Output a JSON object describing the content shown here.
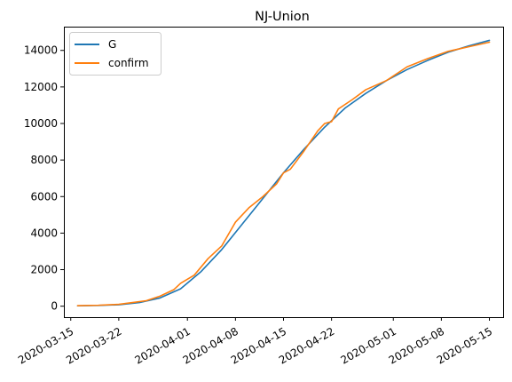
{
  "chart_data": {
    "type": "line",
    "title": "NJ-Union",
    "xlabel": "",
    "ylabel": "",
    "x_ticks": [
      "2020-03-15",
      "2020-03-22",
      "2020-04-01",
      "2020-04-08",
      "2020-04-15",
      "2020-04-22",
      "2020-05-01",
      "2020-05-08",
      "2020-05-15"
    ],
    "y_ticks": [
      0,
      2000,
      4000,
      6000,
      8000,
      10000,
      12000,
      14000
    ],
    "xlim": [
      "2020-03-14",
      "2020-05-17"
    ],
    "ylim": [
      -600,
      15300
    ],
    "grid": false,
    "legend_position": "top-left",
    "series": [
      {
        "name": "G",
        "color": "#1f77b4",
        "points": [
          [
            "2020-03-16",
            20
          ],
          [
            "2020-03-19",
            40
          ],
          [
            "2020-03-22",
            80
          ],
          [
            "2020-03-25",
            200
          ],
          [
            "2020-03-28",
            450
          ],
          [
            "2020-03-31",
            950
          ],
          [
            "2020-04-03",
            1900
          ],
          [
            "2020-04-06",
            3100
          ],
          [
            "2020-04-09",
            4500
          ],
          [
            "2020-04-12",
            5900
          ],
          [
            "2020-04-15",
            7300
          ],
          [
            "2020-04-18",
            8600
          ],
          [
            "2020-04-21",
            9800
          ],
          [
            "2020-04-24",
            10850
          ],
          [
            "2020-04-27",
            11650
          ],
          [
            "2020-04-30",
            12350
          ],
          [
            "2020-05-03",
            12950
          ],
          [
            "2020-05-06",
            13450
          ],
          [
            "2020-05-09",
            13900
          ],
          [
            "2020-05-12",
            14250
          ],
          [
            "2020-05-15",
            14550
          ]
        ]
      },
      {
        "name": "confirm",
        "color": "#ff7f0e",
        "points": [
          [
            "2020-03-16",
            30
          ],
          [
            "2020-03-19",
            50
          ],
          [
            "2020-03-22",
            100
          ],
          [
            "2020-03-24",
            200
          ],
          [
            "2020-03-26",
            300
          ],
          [
            "2020-03-28",
            550
          ],
          [
            "2020-03-30",
            900
          ],
          [
            "2020-03-31",
            1250
          ],
          [
            "2020-04-02",
            1700
          ],
          [
            "2020-04-04",
            2600
          ],
          [
            "2020-04-06",
            3300
          ],
          [
            "2020-04-08",
            4600
          ],
          [
            "2020-04-10",
            5400
          ],
          [
            "2020-04-12",
            6000
          ],
          [
            "2020-04-14",
            6700
          ],
          [
            "2020-04-15",
            7300
          ],
          [
            "2020-04-16",
            7500
          ],
          [
            "2020-04-18",
            8500
          ],
          [
            "2020-04-20",
            9600
          ],
          [
            "2020-04-21",
            10000
          ],
          [
            "2020-04-22",
            10100
          ],
          [
            "2020-04-23",
            10800
          ],
          [
            "2020-04-25",
            11300
          ],
          [
            "2020-04-27",
            11850
          ],
          [
            "2020-04-30",
            12350
          ],
          [
            "2020-05-03",
            13100
          ],
          [
            "2020-05-06",
            13550
          ],
          [
            "2020-05-09",
            13950
          ],
          [
            "2020-05-12",
            14200
          ],
          [
            "2020-05-15",
            14450
          ]
        ]
      }
    ]
  }
}
